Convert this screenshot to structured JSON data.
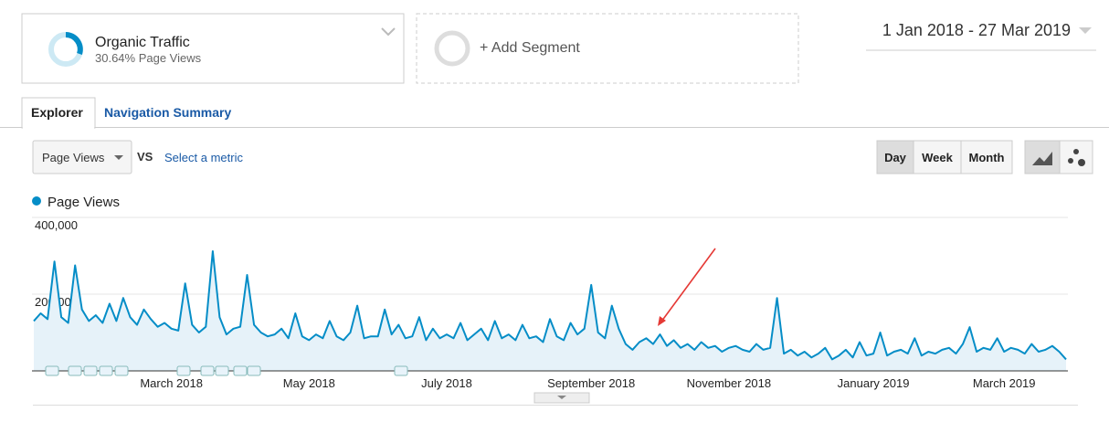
{
  "header": {
    "segment_title": "Organic Traffic",
    "segment_subtitle": "30.64% Page Views",
    "add_segment": "+ Add Segment",
    "date_range": "1 Jan 2018 - 27 Mar 2019"
  },
  "tabs": [
    "Explorer",
    "Navigation Summary"
  ],
  "controls": {
    "metric": "Page Views",
    "vs": "VS",
    "select_metric": "Select a metric",
    "granularity": [
      "Day",
      "Week",
      "Month"
    ]
  },
  "chart_data": {
    "type": "line",
    "categories": [
      null,
      null,
      null,
      null,
      null,
      null,
      null,
      null,
      null,
      null,
      null,
      null,
      null,
      null,
      null,
      null,
      null,
      null,
      null,
      null,
      "March 2018",
      null,
      null,
      null,
      null,
      null,
      null,
      null,
      null,
      null,
      null,
      null,
      null,
      null,
      null,
      null,
      null,
      null,
      null,
      null,
      "May 2018",
      null,
      null,
      null,
      null,
      null,
      null,
      null,
      null,
      null,
      null,
      null,
      null,
      null,
      null,
      null,
      null,
      null,
      null,
      null,
      "July 2018",
      null,
      null,
      null,
      null,
      null,
      null,
      null,
      null,
      null,
      null,
      null,
      null,
      null,
      null,
      null,
      null,
      null,
      null,
      null,
      null,
      "September 2018",
      null,
      null,
      null,
      null,
      null,
      null,
      null,
      null,
      null,
      null,
      null,
      null,
      null,
      null,
      null,
      null,
      null,
      null,
      null,
      "November 2018",
      null,
      null,
      null,
      null,
      null,
      null,
      null,
      null,
      null,
      null,
      null,
      null,
      null,
      null,
      null,
      null,
      null,
      null,
      null,
      null,
      "January 2019",
      null,
      null,
      null,
      null,
      null,
      null,
      null,
      null,
      null,
      null,
      null,
      null,
      null,
      null,
      null,
      null,
      null,
      null,
      "March 2019",
      null,
      null,
      null,
      null,
      null,
      null,
      null,
      null,
      null
    ],
    "series": [
      {
        "name": "Page Views",
        "color": "#058dc7",
        "values": [
          130000,
          150000,
          135000,
          285000,
          140000,
          125000,
          275000,
          160000,
          130000,
          145000,
          125000,
          175000,
          130000,
          190000,
          140000,
          120000,
          160000,
          135000,
          115000,
          125000,
          110000,
          105000,
          228000,
          120000,
          100000,
          115000,
          312000,
          140000,
          95000,
          110000,
          115000,
          250000,
          120000,
          100000,
          90000,
          95000,
          110000,
          85000,
          150000,
          90000,
          80000,
          95000,
          85000,
          130000,
          90000,
          80000,
          100000,
          170000,
          85000,
          90000,
          90000,
          160000,
          95000,
          120000,
          85000,
          90000,
          140000,
          80000,
          110000,
          85000,
          95000,
          85000,
          125000,
          80000,
          95000,
          110000,
          80000,
          130000,
          85000,
          95000,
          80000,
          120000,
          85000,
          90000,
          75000,
          135000,
          90000,
          80000,
          125000,
          95000,
          110000,
          224000,
          100000,
          85000,
          170000,
          110000,
          70000,
          55000,
          75000,
          85000,
          70000,
          95000,
          65000,
          80000,
          60000,
          70000,
          55000,
          75000,
          60000,
          65000,
          50000,
          60000,
          65000,
          55000,
          50000,
          70000,
          55000,
          60000,
          190000,
          45000,
          55000,
          40000,
          50000,
          35000,
          45000,
          60000,
          30000,
          40000,
          55000,
          35000,
          75000,
          40000,
          45000,
          100000,
          40000,
          50000,
          55000,
          45000,
          85000,
          40000,
          50000,
          45000,
          55000,
          60000,
          45000,
          70000,
          114000,
          50000,
          60000,
          55000,
          85000,
          50000,
          60000,
          55000,
          45000,
          70000,
          50000,
          55000,
          65000,
          50000,
          30000
        ]
      }
    ],
    "ylim": [
      0,
      400000
    ],
    "yticks": [
      {
        "value": 200000,
        "label": "200,000"
      },
      {
        "value": 400000,
        "label": "400,000"
      }
    ],
    "grid": true
  }
}
